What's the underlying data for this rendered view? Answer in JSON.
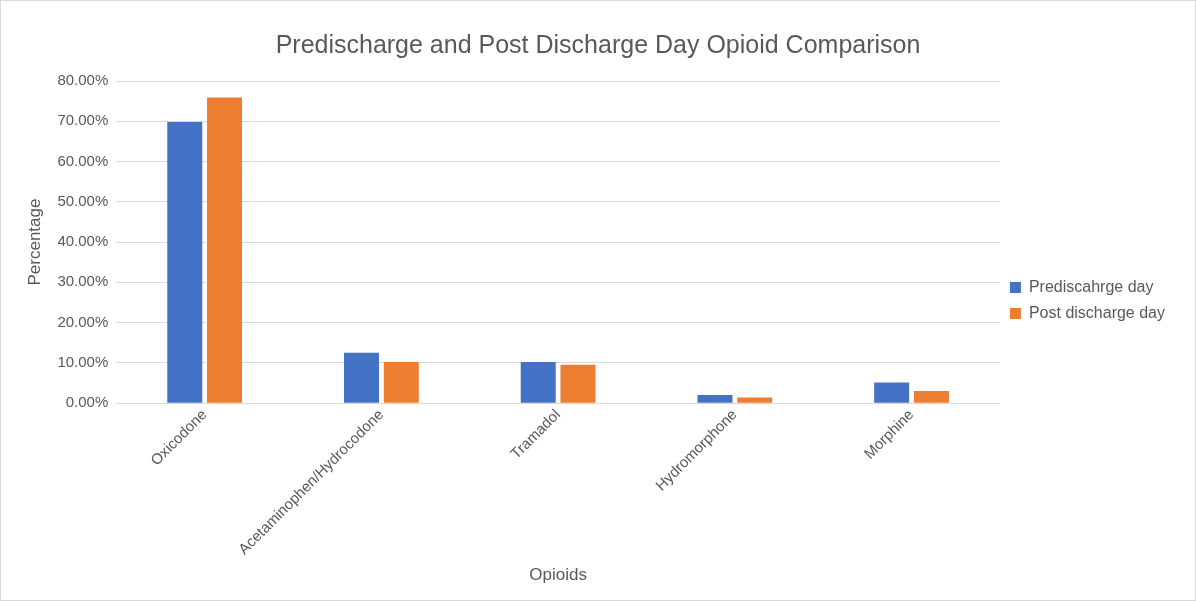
{
  "chart_data": {
    "type": "bar",
    "title": "Predischarge and Post Discharge Day Opioid Comparison",
    "xlabel": "Opioids",
    "ylabel": "Percentage",
    "categories": [
      "Oxicodone",
      "Acetaminophen/Hydrocodone",
      "Tramadol",
      "Hydromorphone",
      "Morphine"
    ],
    "series": [
      {
        "name": "Prediscahrge day",
        "color": "#4472c4",
        "values": [
          69.8,
          12.5,
          10.2,
          2.0,
          5.1
        ]
      },
      {
        "name": "Post discharge day",
        "color": "#ed7d31",
        "values": [
          75.9,
          10.2,
          9.5,
          1.4,
          3.0
        ]
      }
    ],
    "ylim": [
      0,
      80
    ],
    "yticks": [
      {
        "value": 0,
        "label": "0.00%"
      },
      {
        "value": 10,
        "label": "10.00%"
      },
      {
        "value": 20,
        "label": "20.00%"
      },
      {
        "value": 30,
        "label": "30.00%"
      },
      {
        "value": 40,
        "label": "40.00%"
      },
      {
        "value": 50,
        "label": "50.00%"
      },
      {
        "value": 60,
        "label": "60.00%"
      },
      {
        "value": 70,
        "label": "70.00%"
      },
      {
        "value": 80,
        "label": "80.00%"
      }
    ],
    "grid": "y",
    "legend": "right"
  }
}
